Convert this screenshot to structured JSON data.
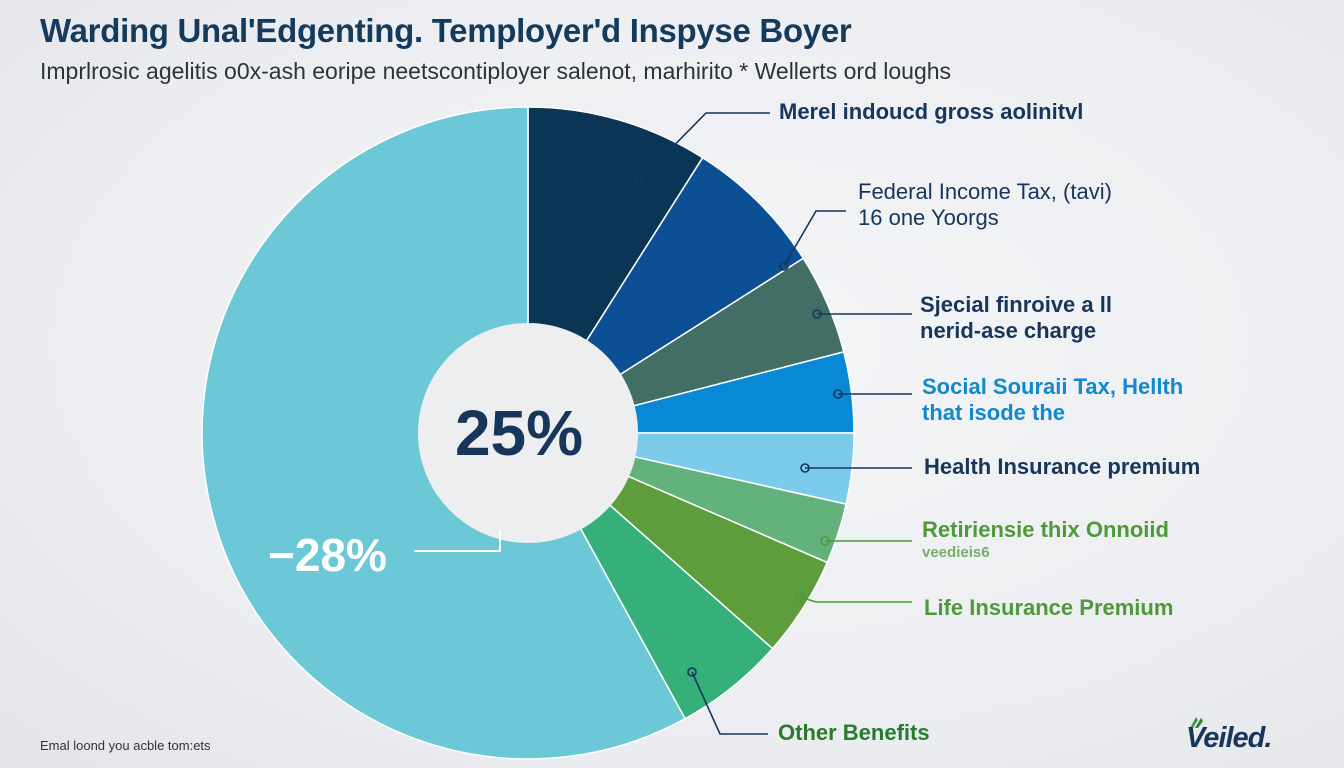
{
  "header": {
    "title": "Warding Unal'Edgenting. Temployer'd Inspyse Boyer",
    "subtitle": "Imprlrosic agelitis o0x-ash eoripe neetscontiployer salenot, marhirito * Wellerts ord loughs"
  },
  "chart_data": {
    "type": "pie",
    "title": "Warding Unal'Edgenting. Temployer'd Inspyse Boyer",
    "center_label": "25%",
    "side_label": "−28%",
    "slices": [
      {
        "key": "s0",
        "lines": [
          "Merel indoucd gross aolinitvl"
        ],
        "value": 9.0,
        "color": "#0b3555",
        "label_color": "#17365a"
      },
      {
        "key": "s1",
        "lines": [
          "Federal Income Tax, (tavi)",
          "16 one Yoorgs"
        ],
        "value": 7.0,
        "color": "#0d4f94",
        "label_color": "#17365a"
      },
      {
        "key": "s2",
        "lines": [
          "Sjecial finroive a ll",
          "nerid-ase charge"
        ],
        "value": 5.0,
        "color": "#426e66",
        "label_color": "#17365a"
      },
      {
        "key": "s3",
        "lines": [
          "Social Souraii Tax, Hellth",
          "that isode the"
        ],
        "value": 4.0,
        "color": "#0789d6",
        "label_color": "#1189cc"
      },
      {
        "key": "s4",
        "lines": [
          "Health Insurance premium"
        ],
        "value": 3.5,
        "color": "#7ccbea",
        "label_color": "#17365a"
      },
      {
        "key": "s5",
        "lines": [
          "Retiriensie thix Onnoiid",
          "veedieis6"
        ],
        "value": 3.0,
        "color": "#63b27c",
        "label_color": "#4e9a3a"
      },
      {
        "key": "s6",
        "lines": [
          "Life Insurance Premium"
        ],
        "value": 5.0,
        "color": "#5e9d3b",
        "label_color": "#4e9a3a"
      },
      {
        "key": "s7",
        "lines": [
          "Other Benefits"
        ],
        "value": 5.5,
        "color": "#36b07a",
        "label_color": "#287a2e"
      },
      {
        "key": "s8",
        "lines": [],
        "value": 58.0,
        "color": "#6cc8d6",
        "label_color": "#17365a"
      }
    ]
  },
  "footer": {
    "note": "Emal loond you acble tom:ets",
    "logo": "Veiled."
  },
  "colors": {
    "title": "#143a5c",
    "leader_line": "#17365a",
    "hole": "#eceef0"
  }
}
